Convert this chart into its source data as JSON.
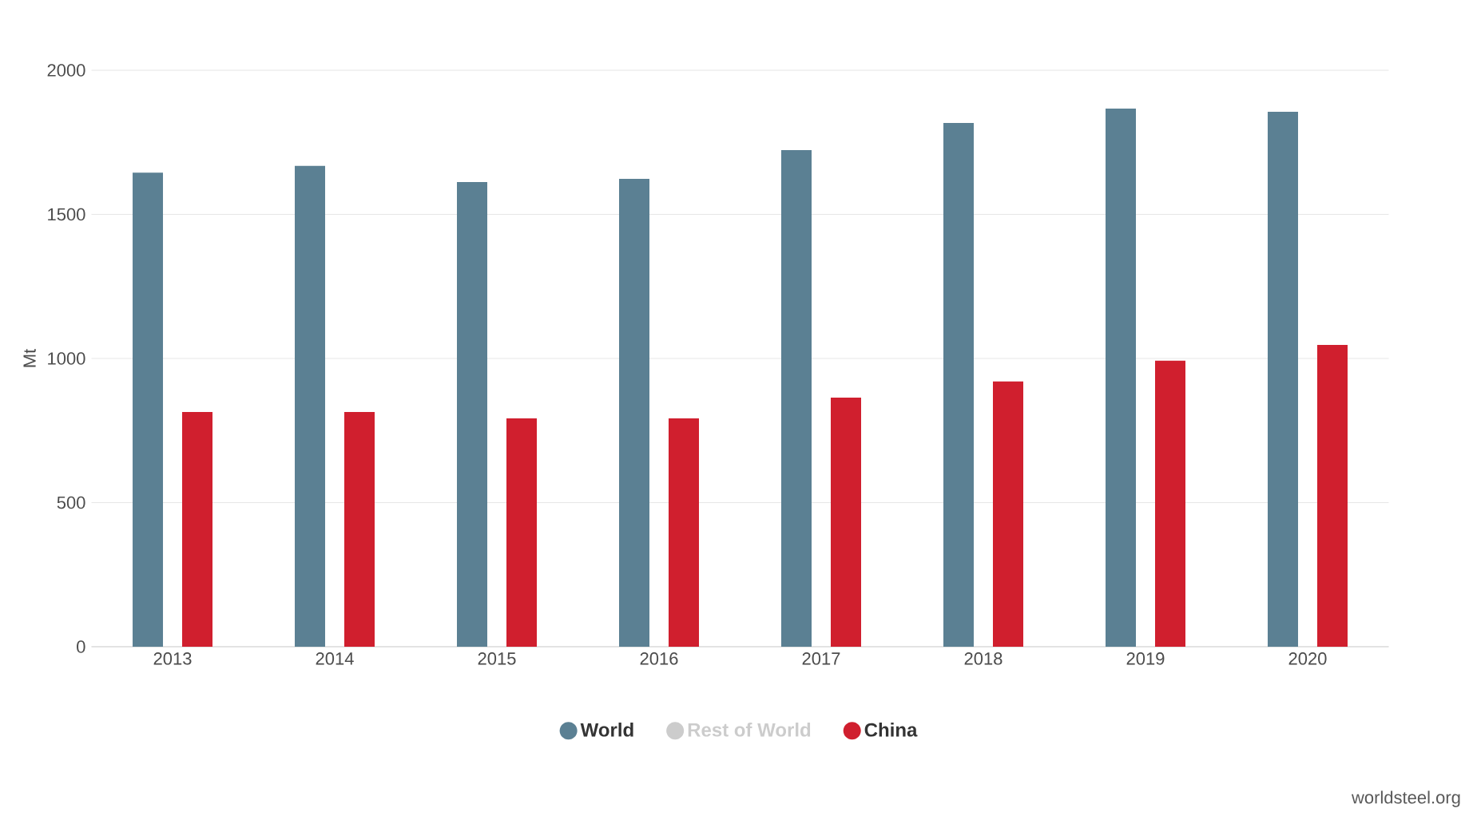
{
  "chart_data": {
    "type": "bar",
    "ylabel": "Mt",
    "categories": [
      "2013",
      "2014",
      "2015",
      "2016",
      "2017",
      "2018",
      "2019",
      "2020"
    ],
    "series": [
      {
        "name": "World",
        "color": "#5b8093",
        "values": [
          1645,
          1668,
          1612,
          1623,
          1723,
          1817,
          1867,
          1856
        ]
      },
      {
        "name": "Rest of World",
        "color": "#cccccc",
        "values": [
          null,
          null,
          null,
          null,
          null,
          null,
          null,
          null
        ]
      },
      {
        "name": "China",
        "color": "#d01f2e",
        "values": [
          814,
          814,
          792,
          792,
          864,
          920,
          992,
          1047
        ]
      }
    ],
    "ylim": [
      0,
      2000
    ],
    "yticks": [
      0,
      500,
      1000,
      1500,
      2000
    ],
    "grid": "y",
    "legend": "bottom",
    "marker": "circle",
    "annotations": [
      "worldsteel.org"
    ]
  }
}
